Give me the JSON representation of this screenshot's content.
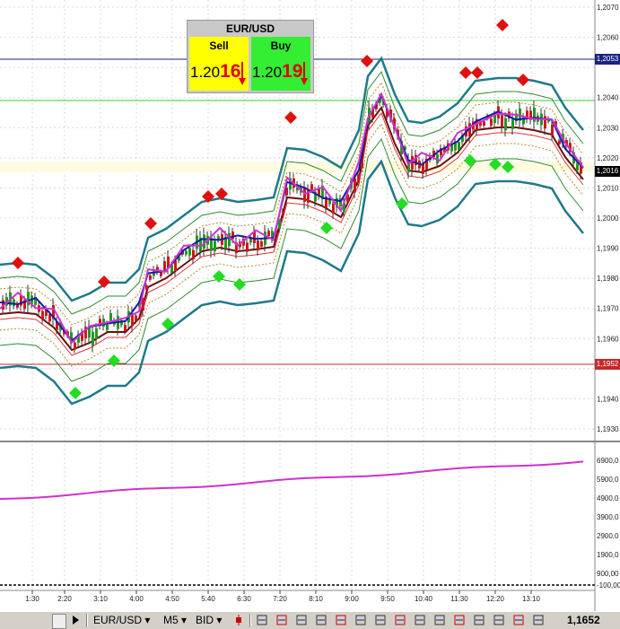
{
  "quote": {
    "symbol": "EUR/USD",
    "sell_label": "Sell",
    "buy_label": "Buy",
    "sell_prefix": "1.20",
    "sell_pips": "16",
    "buy_prefix": "1.20",
    "buy_pips": "19"
  },
  "axis": {
    "price_ticks": [
      "1,2070",
      "1,2060",
      "1,2053",
      "1,2040",
      "1,2030",
      "1,2020",
      "1,2016",
      "1,2010",
      "1,2000",
      "1,1990",
      "1,1980",
      "1,1970",
      "1,1960",
      "1,1952",
      "1,1940",
      "1,1930"
    ],
    "volume_ticks": [
      "6900,0",
      "5900,0",
      "4900,0",
      "3900,0",
      "2900,0",
      "1900,0",
      "900,00",
      "-100,00"
    ],
    "time_ticks": [
      "1:30",
      "2:20",
      "3:10",
      "4:00",
      "4:50",
      "5:40",
      "6:30",
      "7:20",
      "8:10",
      "9:00",
      "9:50",
      "10:40",
      "11:30",
      "12:20",
      "13:10"
    ],
    "marker_high": "1,2053",
    "marker_current": "1,2016",
    "marker_low": "1,1952"
  },
  "colors": {
    "band_outer": "#1e7a8a",
    "band_inner": "#2e8b2e",
    "ma_fast": "#1a1aa0",
    "ma_slow": "#6b0f0f",
    "envelope": "#cc33cc",
    "sell_signal": "#e01010",
    "buy_signal": "#22dd22",
    "high_line": "#1a237e",
    "low_line": "#c62828",
    "green_level": "#33cc33"
  },
  "toolbar": {
    "symbol": "EUR/USD",
    "timeframe": "M5",
    "price_type": "BID",
    "zoom_value": "1,1652",
    "icons": [
      "nav-back-icon",
      "nav-forward-icon",
      "candle-icon",
      "crosshair-icon",
      "hbar-icon",
      "vline-icon",
      "grid-icon",
      "text-icon",
      "zoom-icon",
      "pointer-icon",
      "pencil-icon",
      "circle-icon",
      "arrow-icon",
      "settings-icon",
      "color-icon",
      "refresh-icon",
      "print-icon"
    ]
  }
}
